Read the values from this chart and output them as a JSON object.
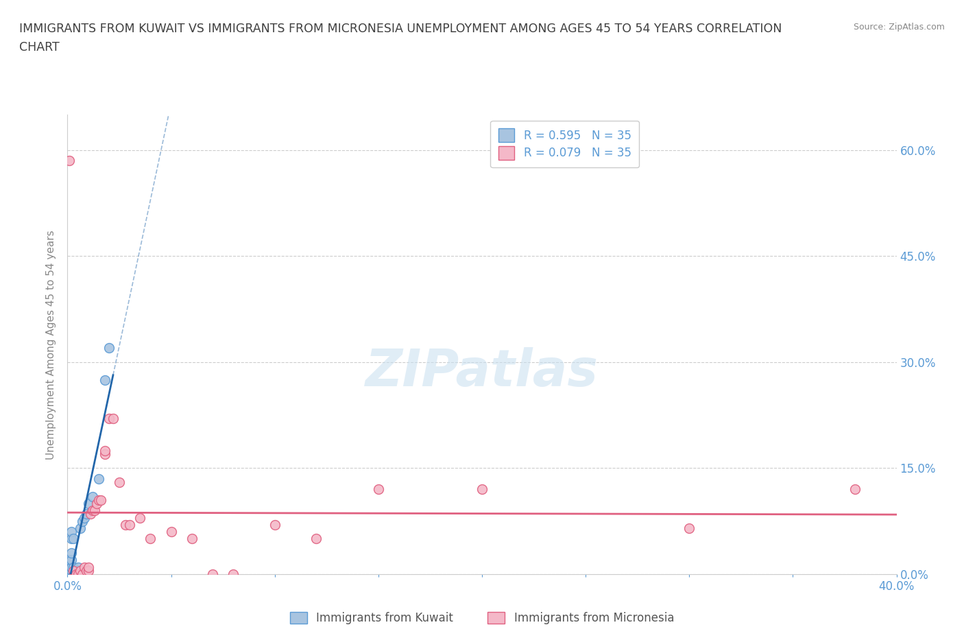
{
  "title_line1": "IMMIGRANTS FROM KUWAIT VS IMMIGRANTS FROM MICRONESIA UNEMPLOYMENT AMONG AGES 45 TO 54 YEARS CORRELATION",
  "title_line2": "CHART",
  "source_text": "Source: ZipAtlas.com",
  "ylabel": "Unemployment Among Ages 45 to 54 years",
  "xlim": [
    0.0,
    0.4
  ],
  "ylim": [
    0.0,
    0.65
  ],
  "ytick_labels": [
    "0.0%",
    "15.0%",
    "30.0%",
    "45.0%",
    "60.0%"
  ],
  "ytick_values": [
    0.0,
    0.15,
    0.3,
    0.45,
    0.6
  ],
  "xtick_labels": [
    "0.0%",
    "",
    "",
    "",
    "",
    "",
    "",
    "",
    "40.0%"
  ],
  "xtick_values": [
    0.0,
    0.05,
    0.1,
    0.15,
    0.2,
    0.25,
    0.3,
    0.35,
    0.4
  ],
  "R_kuwait": 0.595,
  "N_kuwait": 35,
  "R_micronesia": 0.079,
  "N_micronesia": 35,
  "watermark": "ZIPatlas",
  "legend_labels": [
    "Immigrants from Kuwait",
    "Immigrants from Micronesia"
  ],
  "kuwait_color": "#a8c4e0",
  "kuwait_edge_color": "#5b9bd5",
  "micronesia_color": "#f4b8c8",
  "micronesia_edge_color": "#e06080",
  "trend_kuwait_color": "#2266aa",
  "trend_micronesia_color": "#e06080",
  "kuwait_scatter": [
    [
      0.001,
      0.0
    ],
    [
      0.001,
      0.0
    ],
    [
      0.001,
      0.0
    ],
    [
      0.001,
      0.005
    ],
    [
      0.001,
      0.005
    ],
    [
      0.001,
      0.01
    ],
    [
      0.001,
      0.01
    ],
    [
      0.001,
      0.02
    ],
    [
      0.002,
      0.0
    ],
    [
      0.002,
      0.005
    ],
    [
      0.002,
      0.01
    ],
    [
      0.002,
      0.01
    ],
    [
      0.002,
      0.02
    ],
    [
      0.002,
      0.03
    ],
    [
      0.002,
      0.05
    ],
    [
      0.002,
      0.06
    ],
    [
      0.003,
      0.0
    ],
    [
      0.003,
      0.005
    ],
    [
      0.003,
      0.005
    ],
    [
      0.003,
      0.01
    ],
    [
      0.003,
      0.05
    ],
    [
      0.004,
      0.0
    ],
    [
      0.004,
      0.005
    ],
    [
      0.005,
      0.0
    ],
    [
      0.005,
      0.005
    ],
    [
      0.005,
      0.01
    ],
    [
      0.006,
      0.065
    ],
    [
      0.007,
      0.075
    ],
    [
      0.008,
      0.08
    ],
    [
      0.009,
      0.085
    ],
    [
      0.01,
      0.1
    ],
    [
      0.012,
      0.11
    ],
    [
      0.015,
      0.135
    ],
    [
      0.018,
      0.275
    ],
    [
      0.02,
      0.32
    ]
  ],
  "micronesia_scatter": [
    [
      0.001,
      0.585
    ],
    [
      0.003,
      0.005
    ],
    [
      0.004,
      0.0
    ],
    [
      0.005,
      0.0
    ],
    [
      0.006,
      0.005
    ],
    [
      0.007,
      0.0
    ],
    [
      0.008,
      0.01
    ],
    [
      0.009,
      0.005
    ],
    [
      0.01,
      0.005
    ],
    [
      0.01,
      0.01
    ],
    [
      0.011,
      0.085
    ],
    [
      0.012,
      0.09
    ],
    [
      0.013,
      0.09
    ],
    [
      0.014,
      0.1
    ],
    [
      0.015,
      0.105
    ],
    [
      0.016,
      0.105
    ],
    [
      0.018,
      0.17
    ],
    [
      0.018,
      0.175
    ],
    [
      0.02,
      0.22
    ],
    [
      0.022,
      0.22
    ],
    [
      0.025,
      0.13
    ],
    [
      0.028,
      0.07
    ],
    [
      0.03,
      0.07
    ],
    [
      0.035,
      0.08
    ],
    [
      0.04,
      0.05
    ],
    [
      0.05,
      0.06
    ],
    [
      0.06,
      0.05
    ],
    [
      0.07,
      0.0
    ],
    [
      0.08,
      0.0
    ],
    [
      0.1,
      0.07
    ],
    [
      0.12,
      0.05
    ],
    [
      0.15,
      0.12
    ],
    [
      0.2,
      0.12
    ],
    [
      0.3,
      0.065
    ],
    [
      0.38,
      0.12
    ]
  ],
  "background_color": "#ffffff",
  "grid_color": "#cccccc",
  "title_color": "#404040",
  "axis_label_color": "#5b9bd5",
  "right_tick_color": "#5b9bd5"
}
